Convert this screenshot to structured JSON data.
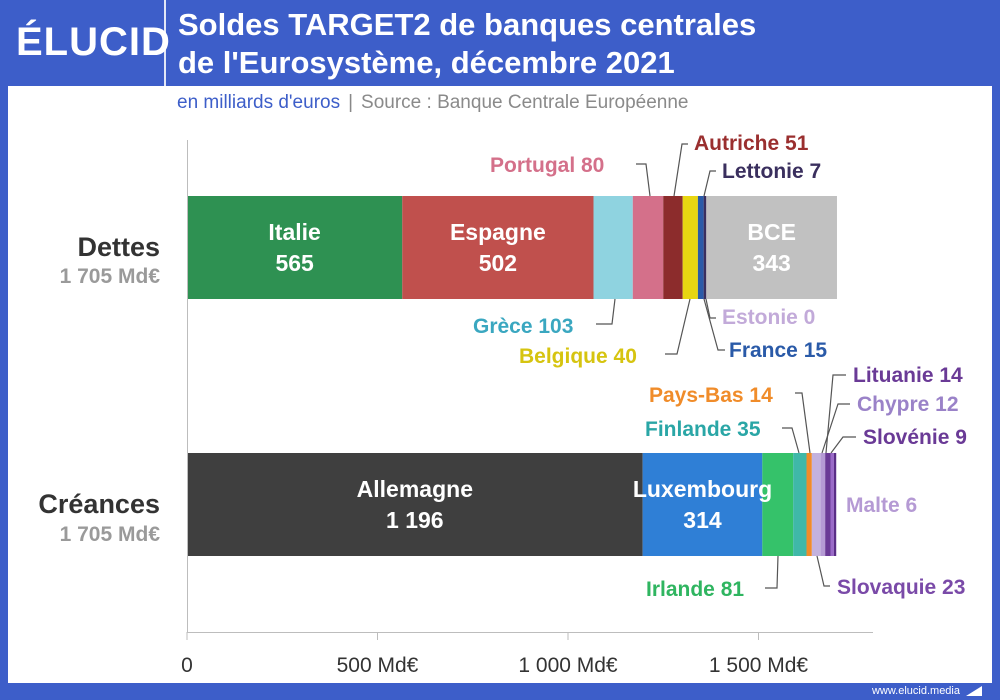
{
  "brand": {
    "logo_text": "ÉLUCID",
    "url": "www.elucid.media"
  },
  "header": {
    "title_line1": "Soldes TARGET2 de banques centrales",
    "title_line2": "de l'Eurosystème, décembre 2021"
  },
  "subtitle": {
    "unit": "en milliards d'euros",
    "separator": "|",
    "source": "Source : Banque Centrale Européenne"
  },
  "chart_data": {
    "type": "bar",
    "orientation": "horizontal",
    "stacked": true,
    "xlim": [
      0,
      1800
    ],
    "x_ticks": [
      {
        "value": 0,
        "label": "0"
      },
      {
        "value": 500,
        "label": "500 Md€"
      },
      {
        "value": 1000,
        "label": "1 000 Md€"
      },
      {
        "value": 1500,
        "label": "1 500 Md€"
      }
    ],
    "grid": false,
    "rows": [
      {
        "name": "Dettes",
        "total_label": "1 705 Md€",
        "segments": [
          {
            "country": "Italie",
            "value": 565,
            "value_label": "565",
            "color": "#2e9152",
            "label_inside": true,
            "label_color": "#ffffff"
          },
          {
            "country": "Espagne",
            "value": 502,
            "value_label": "502",
            "color": "#c0504d",
            "label_inside": true,
            "label_color": "#ffffff"
          },
          {
            "country": "Grèce",
            "value": 103,
            "value_label": "103",
            "color": "#8fd3e0",
            "label_color": "#3aa7c0",
            "callout": "below"
          },
          {
            "country": "Portugal",
            "value": 80,
            "value_label": "80",
            "color": "#d4708a",
            "label_color": "#d4708a",
            "callout": "above"
          },
          {
            "country": "Autriche",
            "value": 51,
            "value_label": "51",
            "color": "#8c2c2c",
            "label_color": "#9a2f2f",
            "callout": "above"
          },
          {
            "country": "Belgique",
            "value": 40,
            "value_label": "40",
            "color": "#e8d612",
            "label_color": "#d6c410",
            "callout": "below"
          },
          {
            "country": "France",
            "value": 15,
            "value_label": "15",
            "color": "#2a5aa8",
            "label_color": "#2a5aa8",
            "callout": "below"
          },
          {
            "country": "Lettonie",
            "value": 7,
            "value_label": "7",
            "color": "#3a2f5e",
            "label_color": "#3a2f5e",
            "callout": "above"
          },
          {
            "country": "Estonie",
            "value": 0,
            "value_label": "0",
            "color": "#c9b3df",
            "label_color": "#c2aad9",
            "callout": "below"
          },
          {
            "country": "BCE",
            "value": 343,
            "value_label": "343",
            "color": "#c1c1c1",
            "label_inside": true,
            "label_color": "#ffffff"
          }
        ]
      },
      {
        "name": "Créances",
        "total_label": "1 705 Md€",
        "segments": [
          {
            "country": "Allemagne",
            "value": 1196,
            "value_label": "1 196",
            "color": "#3f3f3f",
            "label_inside": true,
            "label_color": "#ffffff"
          },
          {
            "country": "Luxembourg",
            "value": 314,
            "value_label": "314",
            "color": "#2f7fd6",
            "label_inside": true,
            "label_color": "#ffffff"
          },
          {
            "country": "Irlande",
            "value": 81,
            "value_label": "81",
            "color": "#35c26a",
            "label_color": "#2fb560",
            "callout": "below"
          },
          {
            "country": "Finlande",
            "value": 35,
            "value_label": "35",
            "color": "#3fb8a8",
            "label_color": "#2aa6a6",
            "callout": "above"
          },
          {
            "country": "Pays-Bas",
            "value": 14,
            "value_label": "14",
            "color": "#f08c2a",
            "label_color": "#f08c2a",
            "callout": "above"
          },
          {
            "country": "Slovaquie",
            "value": 23,
            "value_label": "23",
            "color": "#c3b2de",
            "label_color": "#7a4aa8",
            "callout": "below"
          },
          {
            "country": "Chypre",
            "value": 12,
            "value_label": "12",
            "color": "#b59ad4",
            "label_color": "#9a82c8",
            "callout": "above"
          },
          {
            "country": "Lituanie",
            "value": 14,
            "value_label": "14",
            "color": "#6a3a96",
            "label_color": "#6a3a96",
            "callout": "above"
          },
          {
            "country": "Slovénie",
            "value": 9,
            "value_label": "9",
            "color": "#9a6ac8",
            "label_color": "#6a3a96",
            "callout": "above"
          },
          {
            "country": "Malte",
            "value": 6,
            "value_label": "6",
            "color": "#5a2e86",
            "label_color": "#b59ad4",
            "callout": "right"
          }
        ]
      }
    ]
  }
}
